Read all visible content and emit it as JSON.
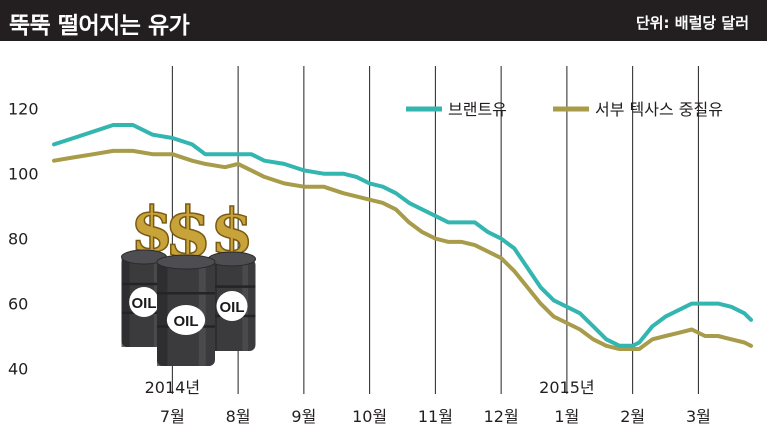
{
  "header": {
    "title": "뚝뚝 떨어지는 유가",
    "unit": "단위: 배럴당 달러"
  },
  "colors": {
    "header_bg": "#231f20",
    "brent": "#33b5b0",
    "wti": "#a89c4a",
    "grid": "#222222"
  },
  "illustration": {
    "icon": "oil-barrels-with-dollar-signs-icon",
    "barrel_label": "OIL",
    "dollar_sign": "$"
  },
  "chart_data": {
    "type": "line",
    "title": "뚝뚝 떨어지는 유가",
    "ylabel": "",
    "xlabel": "",
    "ylim": [
      38,
      127
    ],
    "yticks": [
      120,
      100,
      80,
      60,
      40
    ],
    "grid": "vertical at month starts",
    "legend_position": "top-right",
    "x_range": [
      -1.8,
      8.8
    ],
    "months": [
      {
        "label": "7월",
        "year": "2014년",
        "x": 0
      },
      {
        "label": "8월",
        "year": "",
        "x": 1
      },
      {
        "label": "9월",
        "year": "",
        "x": 2
      },
      {
        "label": "10월",
        "year": "",
        "x": 3
      },
      {
        "label": "11월",
        "year": "",
        "x": 4
      },
      {
        "label": "12월",
        "year": "",
        "x": 5
      },
      {
        "label": "1월",
        "year": "2015년",
        "x": 6
      },
      {
        "label": "2월",
        "year": "",
        "x": 7
      },
      {
        "label": "3월",
        "year": "",
        "x": 8
      }
    ],
    "series": [
      {
        "name": "브랜트유",
        "color": "#33b5b0",
        "points": [
          [
            -1.8,
            109
          ],
          [
            -1.5,
            111
          ],
          [
            -1.2,
            113
          ],
          [
            -0.9,
            115
          ],
          [
            -0.6,
            115
          ],
          [
            -0.3,
            112
          ],
          [
            0,
            111
          ],
          [
            0.3,
            109
          ],
          [
            0.5,
            106
          ],
          [
            0.8,
            106
          ],
          [
            1.0,
            106
          ],
          [
            1.2,
            106
          ],
          [
            1.4,
            104
          ],
          [
            1.7,
            103
          ],
          [
            2.0,
            101
          ],
          [
            2.3,
            100
          ],
          [
            2.6,
            100
          ],
          [
            2.8,
            99
          ],
          [
            3.0,
            97
          ],
          [
            3.2,
            96
          ],
          [
            3.4,
            94
          ],
          [
            3.6,
            91
          ],
          [
            3.8,
            89
          ],
          [
            4.0,
            87
          ],
          [
            4.2,
            85
          ],
          [
            4.4,
            85
          ],
          [
            4.6,
            85
          ],
          [
            4.8,
            82
          ],
          [
            5.0,
            80
          ],
          [
            5.2,
            77
          ],
          [
            5.4,
            71
          ],
          [
            5.6,
            65
          ],
          [
            5.8,
            61
          ],
          [
            6.0,
            59
          ],
          [
            6.2,
            57
          ],
          [
            6.4,
            53
          ],
          [
            6.6,
            49
          ],
          [
            6.8,
            47
          ],
          [
            7.0,
            47
          ],
          [
            7.1,
            48
          ],
          [
            7.3,
            53
          ],
          [
            7.5,
            56
          ],
          [
            7.7,
            58
          ],
          [
            7.9,
            60
          ],
          [
            8.1,
            60
          ],
          [
            8.3,
            60
          ],
          [
            8.5,
            59
          ],
          [
            8.7,
            57
          ],
          [
            8.8,
            55
          ]
        ]
      },
      {
        "name": "서부 텍사스 중질유",
        "color": "#a89c4a",
        "points": [
          [
            -1.8,
            104
          ],
          [
            -1.5,
            105
          ],
          [
            -1.2,
            106
          ],
          [
            -0.9,
            107
          ],
          [
            -0.6,
            107
          ],
          [
            -0.3,
            106
          ],
          [
            0,
            106
          ],
          [
            0.3,
            104
          ],
          [
            0.5,
            103
          ],
          [
            0.8,
            102
          ],
          [
            1.0,
            103
          ],
          [
            1.2,
            101
          ],
          [
            1.4,
            99
          ],
          [
            1.7,
            97
          ],
          [
            2.0,
            96
          ],
          [
            2.3,
            96
          ],
          [
            2.6,
            94
          ],
          [
            2.8,
            93
          ],
          [
            3.0,
            92
          ],
          [
            3.2,
            91
          ],
          [
            3.4,
            89
          ],
          [
            3.6,
            85
          ],
          [
            3.8,
            82
          ],
          [
            4.0,
            80
          ],
          [
            4.2,
            79
          ],
          [
            4.4,
            79
          ],
          [
            4.6,
            78
          ],
          [
            4.8,
            76
          ],
          [
            5.0,
            74
          ],
          [
            5.2,
            70
          ],
          [
            5.4,
            65
          ],
          [
            5.6,
            60
          ],
          [
            5.8,
            56
          ],
          [
            6.0,
            54
          ],
          [
            6.2,
            52
          ],
          [
            6.4,
            49
          ],
          [
            6.6,
            47
          ],
          [
            6.8,
            46
          ],
          [
            7.0,
            46
          ],
          [
            7.1,
            46
          ],
          [
            7.3,
            49
          ],
          [
            7.5,
            50
          ],
          [
            7.7,
            51
          ],
          [
            7.9,
            52
          ],
          [
            8.1,
            50
          ],
          [
            8.3,
            50
          ],
          [
            8.5,
            49
          ],
          [
            8.7,
            48
          ],
          [
            8.8,
            47
          ]
        ]
      }
    ]
  }
}
